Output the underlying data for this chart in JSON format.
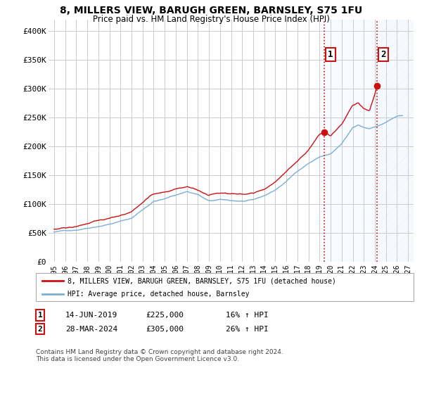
{
  "title": "8, MILLERS VIEW, BARUGH GREEN, BARNSLEY, S75 1FU",
  "subtitle": "Price paid vs. HM Land Registry's House Price Index (HPI)",
  "yticks": [
    0,
    50000,
    100000,
    150000,
    200000,
    250000,
    300000,
    350000,
    400000
  ],
  "ytick_labels": [
    "£0",
    "£50K",
    "£100K",
    "£150K",
    "£200K",
    "£250K",
    "£300K",
    "£350K",
    "£400K"
  ],
  "xlim_start": 1994.5,
  "xlim_end": 2027.5,
  "ylim": [
    0,
    420000
  ],
  "hpi_color": "#7bafd4",
  "price_color": "#cc1111",
  "vline_color": "#cc1111",
  "shade_color": "#ddeeff",
  "annotation1_year": 2019.45,
  "annotation1_value": 225000,
  "annotation2_year": 2024.22,
  "annotation2_value": 305000,
  "annotation1_date": "14-JUN-2019",
  "annotation1_price": "£225,000",
  "annotation1_hpi": "16% ↑ HPI",
  "annotation2_date": "28-MAR-2024",
  "annotation2_price": "£305,000",
  "annotation2_hpi": "26% ↑ HPI",
  "legend_label1": "8, MILLERS VIEW, BARUGH GREEN, BARNSLEY, S75 1FU (detached house)",
  "legend_label2": "HPI: Average price, detached house, Barnsley",
  "footer": "Contains HM Land Registry data © Crown copyright and database right 2024.\nThis data is licensed under the Open Government Licence v3.0.",
  "background_color": "#ffffff",
  "grid_color": "#cccccc"
}
